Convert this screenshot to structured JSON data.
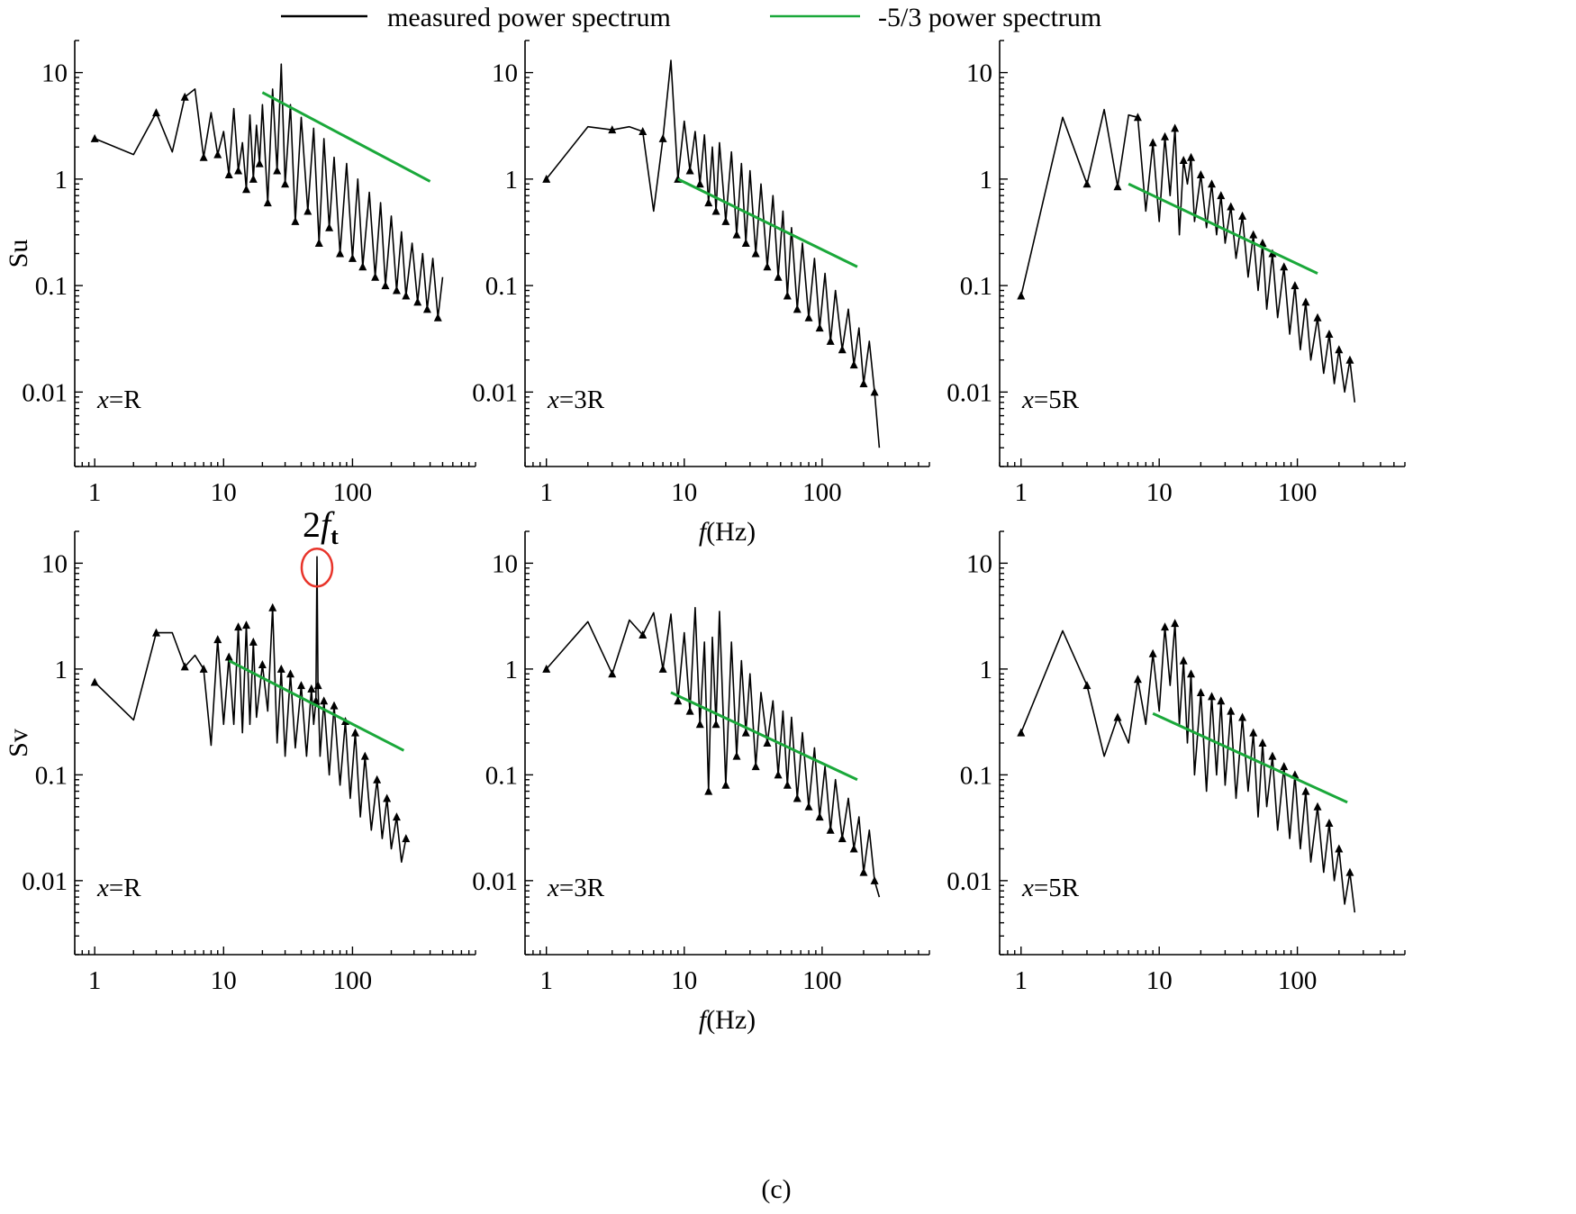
{
  "legend": {
    "measured_label": "measured   power  spectrum",
    "fit_label": "-5/3 power  spectrum",
    "measured_color": "#000000",
    "fit_color": "#1aa83a"
  },
  "caption": "(c)",
  "colors": {
    "highlight": "#e8342a"
  },
  "chart_data": [
    {
      "type": "line",
      "row": "top",
      "col": 1,
      "ylabel": "Su",
      "xlabel": "",
      "annotation": "=R",
      "xscale": "log",
      "yscale": "log",
      "xlim": [
        0.7,
        900
      ],
      "ylim": [
        0.002,
        20
      ],
      "xticks": [
        "1",
        "10",
        "100"
      ],
      "yticks": [
        "10",
        "1",
        "0.1",
        "0.01"
      ],
      "measured": {
        "x": [
          1,
          2,
          3,
          4,
          5,
          6,
          7,
          8,
          9,
          10,
          11,
          12,
          13,
          14,
          15,
          16,
          17,
          18,
          19,
          20,
          22,
          24,
          26,
          28,
          30,
          33,
          36,
          40,
          45,
          50,
          55,
          60,
          66,
          72,
          80,
          90,
          100,
          110,
          120,
          135,
          150,
          165,
          180,
          200,
          220,
          240,
          260,
          290,
          320,
          350,
          380,
          420,
          460,
          500
        ],
        "y": [
          2.4,
          1.7,
          4.2,
          1.8,
          5.9,
          7.0,
          1.6,
          4.2,
          1.7,
          2.8,
          1.1,
          4.6,
          1.2,
          2.2,
          0.8,
          4.0,
          1.0,
          3.2,
          1.4,
          5.0,
          0.6,
          7.0,
          1.2,
          12.0,
          0.9,
          5.0,
          0.4,
          3.8,
          0.5,
          3.0,
          0.25,
          2.4,
          0.35,
          1.6,
          0.2,
          1.4,
          0.18,
          1.0,
          0.15,
          0.75,
          0.12,
          0.6,
          0.1,
          0.45,
          0.09,
          0.32,
          0.08,
          0.25,
          0.07,
          0.2,
          0.06,
          0.18,
          0.05,
          0.12
        ]
      },
      "fit": {
        "x": [
          20,
          400
        ],
        "y": [
          6.5,
          0.95
        ]
      }
    },
    {
      "type": "line",
      "row": "top",
      "col": 2,
      "ylabel": "",
      "xlabel": "f (Hz)",
      "annotation": "=3R",
      "xscale": "log",
      "yscale": "log",
      "xlim": [
        0.7,
        600
      ],
      "ylim": [
        0.002,
        20
      ],
      "xticks": [
        "1",
        "10",
        "100"
      ],
      "yticks": [
        "10",
        "1",
        "0.1",
        "0.01"
      ],
      "measured": {
        "x": [
          1,
          2,
          3,
          4,
          5,
          6,
          7,
          8,
          9,
          10,
          11,
          12,
          13,
          14,
          15,
          16,
          17,
          18,
          20,
          22,
          24,
          26,
          28,
          30,
          33,
          36,
          40,
          44,
          48,
          52,
          56,
          60,
          66,
          72,
          80,
          88,
          96,
          105,
          115,
          125,
          140,
          155,
          170,
          185,
          200,
          220,
          240,
          260
        ],
        "y": [
          1.0,
          3.1,
          2.9,
          3.1,
          2.8,
          0.5,
          2.4,
          13.0,
          1.0,
          3.5,
          1.2,
          2.8,
          0.9,
          2.6,
          0.6,
          2.0,
          0.5,
          2.2,
          0.4,
          1.8,
          0.3,
          1.4,
          0.25,
          1.2,
          0.2,
          0.9,
          0.15,
          0.7,
          0.12,
          0.5,
          0.08,
          0.35,
          0.06,
          0.25,
          0.05,
          0.18,
          0.04,
          0.13,
          0.03,
          0.09,
          0.025,
          0.06,
          0.018,
          0.04,
          0.012,
          0.03,
          0.01,
          0.003
        ]
      },
      "fit": {
        "x": [
          9,
          180
        ],
        "y": [
          1.0,
          0.15
        ]
      }
    },
    {
      "type": "line",
      "row": "top",
      "col": 3,
      "ylabel": "",
      "xlabel": "",
      "annotation": "=5R",
      "xscale": "log",
      "yscale": "log",
      "xlim": [
        0.7,
        600
      ],
      "ylim": [
        0.002,
        20
      ],
      "xticks": [
        "1",
        "10",
        "100"
      ],
      "yticks": [
        "10",
        "1",
        "0.1",
        "0.01"
      ],
      "measured": {
        "x": [
          1,
          2,
          3,
          4,
          5,
          6,
          7,
          8,
          9,
          10,
          11,
          12,
          13,
          14,
          15,
          16,
          17,
          18,
          20,
          22,
          24,
          26,
          28,
          30,
          33,
          36,
          40,
          44,
          48,
          52,
          56,
          60,
          66,
          72,
          80,
          88,
          96,
          105,
          115,
          125,
          140,
          155,
          170,
          185,
          200,
          220,
          240,
          260
        ],
        "y": [
          0.08,
          3.8,
          0.9,
          4.5,
          0.85,
          4.0,
          3.8,
          0.5,
          2.2,
          0.4,
          2.5,
          0.7,
          3.0,
          0.3,
          1.5,
          0.9,
          1.6,
          0.4,
          1.1,
          0.35,
          0.9,
          0.3,
          0.7,
          0.25,
          0.55,
          0.18,
          0.45,
          0.12,
          0.3,
          0.09,
          0.25,
          0.06,
          0.2,
          0.05,
          0.15,
          0.035,
          0.1,
          0.025,
          0.07,
          0.02,
          0.05,
          0.015,
          0.035,
          0.012,
          0.025,
          0.01,
          0.02,
          0.008
        ]
      },
      "fit": {
        "x": [
          6,
          140
        ],
        "y": [
          0.9,
          0.13
        ]
      }
    },
    {
      "type": "line",
      "row": "bottom",
      "col": 1,
      "ylabel": "Sv",
      "xlabel": "",
      "annotation": "=R",
      "xscale": "log",
      "yscale": "log",
      "xlim": [
        0.7,
        900
      ],
      "ylim": [
        0.002,
        20
      ],
      "xticks": [
        "1",
        "10",
        "100"
      ],
      "yticks": [
        "10",
        "1",
        "0.1",
        "0.01"
      ],
      "peak_annotation": {
        "label": "2f",
        "subscript": "t",
        "x": 53,
        "y": 11.5
      },
      "measured": {
        "x": [
          1,
          2,
          3,
          4,
          5,
          6,
          7,
          8,
          9,
          10,
          11,
          12,
          13,
          14,
          15,
          16,
          17,
          18,
          20,
          22,
          24,
          26,
          28,
          30,
          33,
          36,
          40,
          44,
          48,
          50,
          52,
          53,
          54,
          56,
          60,
          66,
          72,
          80,
          88,
          96,
          105,
          115,
          125,
          140,
          155,
          170,
          185,
          200,
          220,
          240,
          260
        ],
        "y": [
          0.75,
          0.33,
          2.2,
          2.2,
          1.05,
          1.35,
          1.0,
          0.19,
          1.9,
          0.3,
          1.3,
          0.3,
          2.5,
          0.25,
          2.6,
          0.3,
          1.8,
          0.35,
          1.1,
          0.4,
          3.8,
          0.2,
          1.0,
          0.15,
          0.9,
          0.18,
          0.7,
          0.15,
          0.65,
          0.3,
          0.5,
          11.5,
          0.7,
          0.15,
          0.5,
          0.1,
          0.45,
          0.08,
          0.32,
          0.06,
          0.25,
          0.04,
          0.15,
          0.03,
          0.09,
          0.025,
          0.06,
          0.02,
          0.04,
          0.015,
          0.025
        ]
      },
      "fit": {
        "x": [
          11,
          250
        ],
        "y": [
          1.2,
          0.17
        ]
      }
    },
    {
      "type": "line",
      "row": "bottom",
      "col": 2,
      "ylabel": "",
      "xlabel": "f (Hz)",
      "annotation": "=3R",
      "xscale": "log",
      "yscale": "log",
      "xlim": [
        0.7,
        600
      ],
      "ylim": [
        0.002,
        20
      ],
      "xticks": [
        "1",
        "10",
        "100"
      ],
      "yticks": [
        "10",
        "1",
        "0.1",
        "0.01"
      ],
      "measured": {
        "x": [
          1,
          2,
          3,
          4,
          5,
          6,
          7,
          8,
          9,
          10,
          11,
          12,
          13,
          14,
          15,
          16,
          17,
          18,
          20,
          22,
          24,
          26,
          28,
          30,
          33,
          36,
          40,
          44,
          48,
          52,
          56,
          60,
          66,
          72,
          80,
          88,
          96,
          105,
          115,
          125,
          140,
          155,
          170,
          185,
          200,
          220,
          240,
          260
        ],
        "y": [
          1.0,
          2.8,
          0.9,
          2.9,
          2.1,
          3.4,
          1.0,
          3.3,
          0.5,
          2.2,
          0.4,
          3.8,
          0.3,
          1.8,
          0.07,
          2.0,
          0.3,
          3.5,
          0.08,
          1.8,
          0.15,
          1.2,
          0.25,
          0.9,
          0.12,
          0.6,
          0.2,
          0.5,
          0.1,
          0.4,
          0.08,
          0.35,
          0.06,
          0.25,
          0.05,
          0.18,
          0.04,
          0.12,
          0.03,
          0.09,
          0.025,
          0.06,
          0.02,
          0.04,
          0.012,
          0.03,
          0.01,
          0.007
        ]
      },
      "fit": {
        "x": [
          8,
          180
        ],
        "y": [
          0.6,
          0.09
        ]
      }
    },
    {
      "type": "line",
      "row": "bottom",
      "col": 3,
      "ylabel": "",
      "xlabel": "",
      "annotation": "=5R",
      "xscale": "log",
      "yscale": "log",
      "xlim": [
        0.7,
        600
      ],
      "ylim": [
        0.002,
        20
      ],
      "xticks": [
        "1",
        "10",
        "100"
      ],
      "yticks": [
        "10",
        "1",
        "0.1",
        "0.01"
      ],
      "measured": {
        "x": [
          1,
          2,
          3,
          4,
          5,
          6,
          7,
          8,
          9,
          10,
          11,
          12,
          13,
          14,
          15,
          16,
          17,
          18,
          20,
          22,
          24,
          26,
          28,
          30,
          33,
          36,
          40,
          44,
          48,
          52,
          56,
          60,
          66,
          72,
          80,
          88,
          96,
          105,
          115,
          125,
          140,
          155,
          170,
          185,
          200,
          220,
          240,
          260
        ],
        "y": [
          0.25,
          2.3,
          0.7,
          0.15,
          0.35,
          0.2,
          0.8,
          0.3,
          1.4,
          0.4,
          2.5,
          0.7,
          2.7,
          0.3,
          1.2,
          0.2,
          0.9,
          0.1,
          0.6,
          0.07,
          0.55,
          0.1,
          0.5,
          0.08,
          0.4,
          0.06,
          0.35,
          0.07,
          0.25,
          0.04,
          0.2,
          0.05,
          0.15,
          0.03,
          0.12,
          0.025,
          0.1,
          0.02,
          0.07,
          0.015,
          0.05,
          0.012,
          0.035,
          0.01,
          0.02,
          0.006,
          0.012,
          0.005
        ]
      },
      "fit": {
        "x": [
          9,
          230
        ],
        "y": [
          0.38,
          0.055
        ]
      }
    }
  ]
}
